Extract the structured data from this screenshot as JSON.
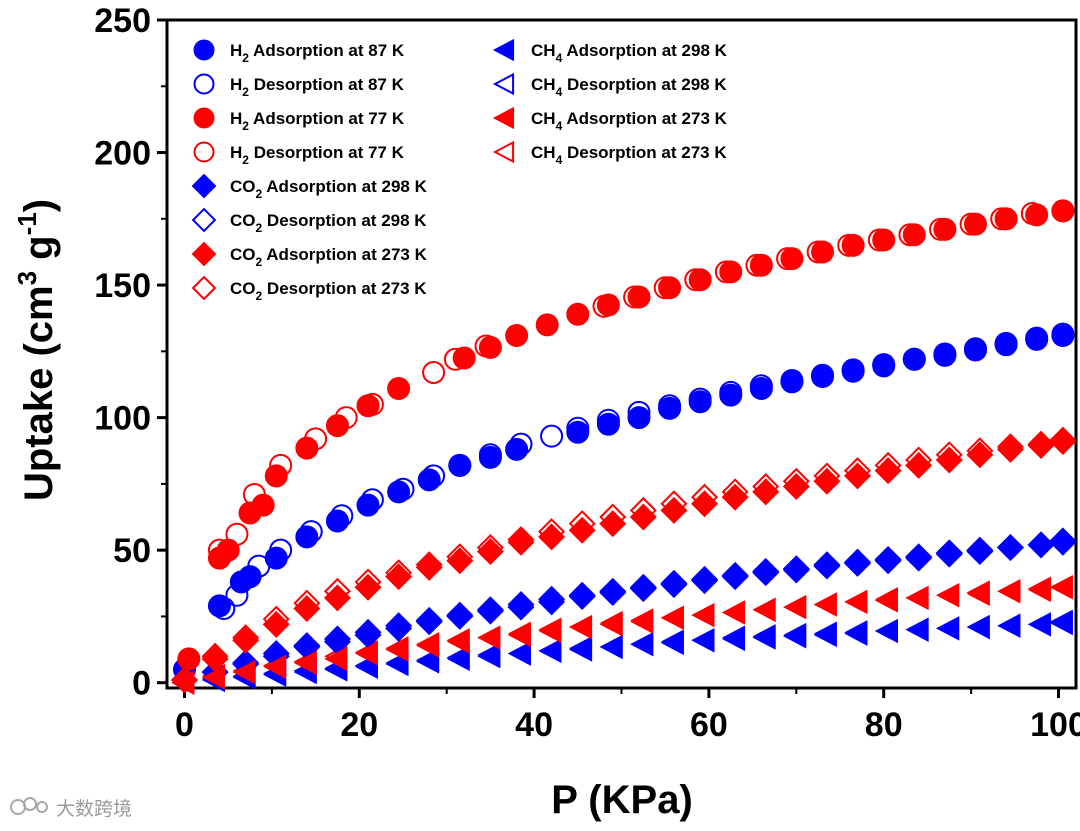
{
  "chart_data": {
    "type": "scatter",
    "xlabel": "P (KPa)",
    "ylabel_parts": [
      "Uptake (cm",
      "3",
      " g",
      "-1",
      ")"
    ],
    "xlim": [
      -2,
      102
    ],
    "ylim": [
      -2,
      250
    ],
    "xticks": [
      0,
      20,
      40,
      60,
      80,
      100
    ],
    "yticks": [
      0,
      50,
      100,
      150,
      200,
      250
    ],
    "series": [
      {
        "gas": "H",
        "sub": "2",
        "rest": " Adsorption at 87 K",
        "marker": "circle",
        "filled": true,
        "color": "#0000ff",
        "x": [
          0,
          4,
          6.5,
          7.5,
          10.5,
          14,
          17.5,
          21,
          24.5,
          28,
          31.5,
          35,
          38,
          45,
          48.5,
          52,
          55.5,
          59,
          62.5,
          66,
          69.5,
          73,
          76.5,
          80,
          83.5,
          87,
          90.5,
          94,
          97.5,
          100.5
        ],
        "y": [
          5,
          29,
          38,
          40,
          47,
          55,
          61,
          67,
          72,
          76.5,
          82,
          85,
          88,
          94.5,
          97.5,
          100,
          103.5,
          106,
          108.5,
          111,
          113.5,
          115.5,
          117.5,
          119.5,
          122,
          123.5,
          125.5,
          127.5,
          129.5,
          131
        ]
      },
      {
        "gas": "H",
        "sub": "2",
        "rest": " Desorption at 87 K",
        "marker": "circle",
        "filled": false,
        "color": "#0000ff",
        "x": [
          4.5,
          6,
          8.5,
          11,
          14.5,
          18,
          21.5,
          25,
          28.5,
          31.5,
          35,
          38.5,
          42,
          45,
          48.5,
          52,
          55.5,
          59,
          62.5,
          66,
          69.5,
          73,
          76.5,
          80,
          83.5,
          87,
          90.5,
          94,
          97.5,
          100.5
        ],
        "y": [
          28,
          33,
          44,
          50,
          57,
          63,
          69,
          73,
          78,
          82,
          86,
          90,
          93,
          96,
          99,
          102,
          104.5,
          107,
          109.5,
          112,
          114,
          116,
          118,
          120,
          122,
          124,
          126,
          128,
          130,
          131.5
        ]
      },
      {
        "gas": "H",
        "sub": "2",
        "rest": " Adsorption at 77 K",
        "marker": "circle",
        "filled": true,
        "color": "#ff0000",
        "x": [
          0.5,
          4,
          5,
          7.5,
          9,
          10.5,
          14,
          17.5,
          21,
          24.5,
          32,
          35,
          38,
          41.5,
          45,
          48.5,
          52,
          55.5,
          59,
          62.5,
          66,
          69.5,
          73,
          76.5,
          80,
          83.5,
          87,
          90.5,
          94,
          97.5,
          100.5
        ],
        "y": [
          9,
          47,
          50,
          64,
          67,
          78,
          88.5,
          97,
          104.5,
          111,
          122.5,
          126.5,
          131,
          135,
          139,
          142.5,
          145.5,
          149,
          152,
          155,
          157.5,
          160,
          162.5,
          165,
          167,
          169,
          171,
          173,
          175,
          176.5,
          178
        ]
      },
      {
        "gas": "H",
        "sub": "2",
        "rest": " Desorption at 77 K",
        "marker": "circle",
        "filled": false,
        "color": "#ff0000",
        "x": [
          4,
          6,
          8,
          11,
          15,
          18.5,
          21.5,
          28.5,
          31,
          34.5,
          48,
          51.5,
          55,
          58.5,
          62,
          65.5,
          69,
          72.5,
          76,
          79.5,
          83,
          86.5,
          90,
          93.5,
          97,
          100.5
        ],
        "y": [
          50,
          56,
          71,
          82,
          92,
          100,
          105,
          117,
          122,
          127,
          142,
          145.5,
          149,
          152,
          155,
          157.5,
          160,
          162.5,
          165,
          167,
          169,
          171,
          173,
          175,
          177,
          178
        ]
      },
      {
        "gas": "CO",
        "sub": "2",
        "rest": " Adsorption at 298 K",
        "marker": "diamond",
        "filled": true,
        "color": "#0000ff",
        "x": [
          0,
          3.5,
          7,
          10.5,
          14,
          17.5,
          21,
          24.5,
          28,
          31.5,
          35,
          38.5,
          42,
          45.5,
          49,
          52.5,
          56,
          59.5,
          63,
          66.5,
          70,
          73.5,
          77,
          80.5,
          84,
          87.5,
          91,
          94.5,
          98,
          100.5
        ],
        "y": [
          1,
          4,
          7,
          10,
          13.5,
          15.5,
          18,
          20.5,
          23,
          25,
          27,
          28.5,
          30.5,
          32.5,
          34,
          35.5,
          37,
          38.5,
          40,
          41.5,
          42.5,
          44,
          45,
          46,
          47,
          48.5,
          49.5,
          51,
          52,
          53
        ]
      },
      {
        "gas": "CO",
        "sub": "2",
        "rest": " Desorption at 298 K",
        "marker": "diamond",
        "filled": false,
        "color": "#0000ff",
        "x": [
          3.5,
          7,
          10.5,
          14,
          17.5,
          21,
          24.5,
          28,
          31.5,
          35,
          38.5,
          42,
          45.5,
          49,
          52.5,
          56,
          59.5,
          63,
          66.5,
          70,
          73.5,
          77,
          80.5,
          84,
          87.5,
          91,
          94.5,
          98,
          100.5
        ],
        "y": [
          4,
          7.5,
          11,
          14,
          16.5,
          19,
          21.5,
          23.5,
          25.5,
          27.5,
          29.5,
          31.5,
          33,
          34.5,
          36,
          37.5,
          39,
          40.5,
          42,
          43,
          44.5,
          45.5,
          46.5,
          47.5,
          49,
          50,
          51,
          52,
          53.5
        ]
      },
      {
        "gas": "CO",
        "sub": "2",
        "rest": " Adsorption at 273 K",
        "marker": "diamond",
        "filled": true,
        "color": "#ff0000",
        "x": [
          0,
          3.5,
          7,
          10.5,
          14,
          17.5,
          21,
          24.5,
          28,
          31.5,
          35,
          38.5,
          42,
          45.5,
          49,
          52.5,
          56,
          59.5,
          63,
          66.5,
          70,
          73.5,
          77,
          80.5,
          84,
          87.5,
          91,
          94.5,
          98,
          100.5
        ],
        "y": [
          1,
          9,
          16,
          22,
          28,
          32,
          36,
          40,
          43.5,
          46,
          49.5,
          53,
          55,
          57.5,
          60,
          62.5,
          65,
          67.5,
          70,
          72,
          74,
          76,
          78,
          80,
          82,
          84,
          86,
          88,
          89.5,
          91
        ]
      },
      {
        "gas": "CO",
        "sub": "2",
        "rest": " Desorption at 273 K",
        "marker": "diamond",
        "filled": false,
        "color": "#ff0000",
        "x": [
          3.5,
          7,
          10.5,
          14,
          17.5,
          21,
          24.5,
          28,
          31.5,
          35,
          38.5,
          42,
          45.5,
          49,
          52.5,
          56,
          59.5,
          63,
          66.5,
          70,
          73.5,
          77,
          80.5,
          84,
          87.5,
          91,
          94.5,
          98,
          100.5
        ],
        "y": [
          10,
          17,
          24,
          30,
          34.5,
          38,
          41.5,
          44.5,
          47.5,
          51,
          54,
          57,
          60,
          62.5,
          65,
          67.5,
          70,
          72,
          74,
          76,
          78,
          80,
          82,
          84,
          86,
          87.5,
          89,
          90,
          91.5
        ]
      },
      {
        "gas": "CH",
        "sub": "4",
        "rest": " Adsorption at 298 K",
        "marker": "triangle-left",
        "filled": true,
        "color": "#0000ff",
        "x": [
          0,
          3.5,
          7,
          10.5,
          14,
          17.5,
          21,
          24.5,
          28,
          31.5,
          35,
          38.5,
          42,
          45.5,
          49,
          52.5,
          56,
          59.5,
          63,
          66.5,
          70,
          73.5,
          77,
          80.5,
          84,
          87.5,
          91,
          94.5,
          98,
          100.5
        ],
        "y": [
          0,
          1,
          2,
          3,
          4,
          5,
          6,
          7,
          8,
          9,
          10,
          11,
          12,
          12.5,
          13.5,
          14.5,
          15,
          16,
          16.5,
          17,
          17.5,
          18,
          18.5,
          19.5,
          20,
          20.5,
          21,
          21.5,
          22,
          22.5
        ]
      },
      {
        "gas": "CH",
        "sub": "4",
        "rest": " Desorption at 298 K",
        "marker": "triangle-left",
        "filled": false,
        "color": "#0000ff",
        "x": [
          3.5,
          7,
          10.5,
          14,
          17.5,
          21,
          24.5,
          28,
          31.5,
          35,
          38.5,
          42,
          45.5,
          49,
          52.5,
          56,
          59.5,
          63,
          66.5,
          70,
          73.5,
          77,
          80.5,
          84,
          87.5,
          91,
          94.5,
          98,
          100.5
        ],
        "y": [
          1.5,
          2.5,
          3.5,
          4.5,
          5.5,
          6.5,
          7.5,
          8.5,
          9.5,
          10.5,
          11,
          12,
          13,
          13.5,
          14.5,
          15.5,
          16,
          17,
          17.5,
          18,
          18.5,
          19,
          19.5,
          20,
          20.5,
          21,
          21.5,
          22,
          23
        ]
      },
      {
        "gas": "CH",
        "sub": "4",
        "rest": " Adsorption at 273 K",
        "marker": "triangle-left",
        "filled": true,
        "color": "#ff0000",
        "x": [
          0,
          3.5,
          7,
          10.5,
          14,
          17.5,
          21,
          24.5,
          28,
          31.5,
          35,
          38.5,
          42,
          45.5,
          49,
          52.5,
          56,
          59.5,
          63,
          66.5,
          70,
          73.5,
          77,
          80.5,
          84,
          87.5,
          91,
          94.5,
          98,
          100.5
        ],
        "y": [
          0,
          2,
          4,
          6,
          7.5,
          9,
          11,
          12.5,
          14,
          15.5,
          17,
          18,
          19.5,
          21,
          22,
          23,
          24.5,
          25.5,
          26.5,
          27.5,
          28.5,
          29.5,
          30.5,
          31,
          32,
          33,
          34,
          34.5,
          35.5,
          36
        ]
      },
      {
        "gas": "CH",
        "sub": "4",
        "rest": " Desorption at 273 K",
        "marker": "triangle-left",
        "filled": false,
        "color": "#ff0000",
        "x": [
          3.5,
          7,
          10.5,
          14,
          17.5,
          21,
          24.5,
          28,
          31.5,
          35,
          38.5,
          42,
          45.5,
          49,
          52.5,
          56,
          59.5,
          63,
          66.5,
          70,
          73.5,
          77,
          80.5,
          84,
          87.5,
          91,
          94.5,
          98,
          100.5
        ],
        "y": [
          2.5,
          4.5,
          6.5,
          8,
          10,
          11.5,
          13,
          14.5,
          16,
          17,
          18.5,
          20,
          21,
          22.5,
          23.5,
          24.5,
          25.5,
          26.5,
          27.5,
          28.5,
          29.5,
          30.5,
          31.5,
          32,
          33,
          33.5,
          34.5,
          35,
          36
        ]
      }
    ]
  },
  "watermark": {
    "text": "大数跨境"
  }
}
